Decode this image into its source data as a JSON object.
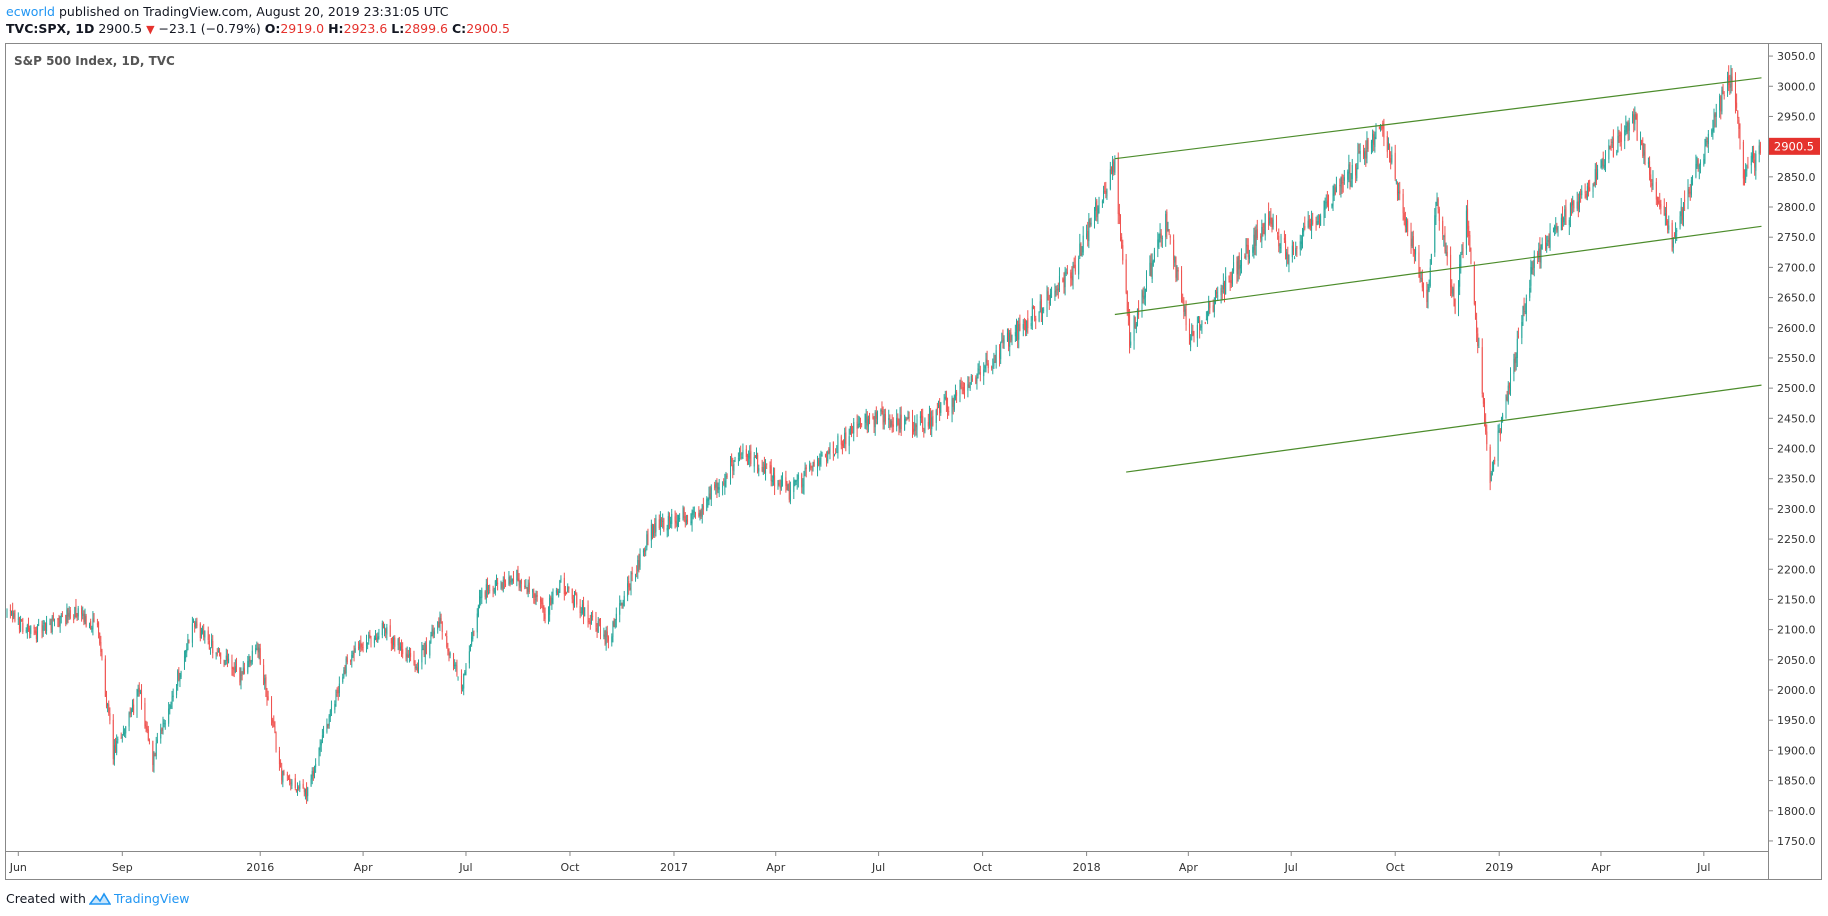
{
  "header": {
    "author": "ecworld",
    "published_text": "published on TradingView.com, August 20, 2019 23:31:05 UTC",
    "symbol": "TVC:SPX, 1D",
    "last": "2900.5",
    "change": "−23.1 (−0.79%)",
    "o_label": "O:",
    "o_val": "2919.0",
    "h_label": "H:",
    "h_val": "2923.6",
    "l_label": "L:",
    "l_val": "2899.6",
    "c_label": "C:",
    "c_val": "2900.5"
  },
  "footer": {
    "created_with": "Created with",
    "brand": "TradingView"
  },
  "colors": {
    "up": "#26a69a",
    "down": "#ef5350",
    "channel": "#4c8c2b",
    "price_tag": "#e5322d"
  },
  "chart_data": {
    "type": "candlestick",
    "title": "S&P 500 Index, 1D, TVC",
    "price_tag": "2900.5",
    "ylim": [
      1735,
      3070
    ],
    "y_ticks": [
      "3050.0",
      "3000.0",
      "2950.0",
      "2900.0",
      "2850.0",
      "2800.0",
      "2750.0",
      "2700.0",
      "2650.0",
      "2600.0",
      "2550.0",
      "2500.0",
      "2450.0",
      "2400.0",
      "2350.0",
      "2300.0",
      "2250.0",
      "2200.0",
      "2150.0",
      "2100.0",
      "2050.0",
      "2000.0",
      "1950.0",
      "1900.0",
      "1850.0",
      "1800.0",
      "1750.0"
    ],
    "x_ticks": [
      {
        "label": "Jun",
        "date": "2015-06-01"
      },
      {
        "label": "Sep",
        "date": "2015-09-01"
      },
      {
        "label": "2016",
        "date": "2016-01-01"
      },
      {
        "label": "Apr",
        "date": "2016-04-01"
      },
      {
        "label": "Jul",
        "date": "2016-07-01"
      },
      {
        "label": "Oct",
        "date": "2016-10-01"
      },
      {
        "label": "2017",
        "date": "2017-01-01"
      },
      {
        "label": "Apr",
        "date": "2017-04-01"
      },
      {
        "label": "Jul",
        "date": "2017-07-01"
      },
      {
        "label": "Oct",
        "date": "2017-10-01"
      },
      {
        "label": "2018",
        "date": "2018-01-01"
      },
      {
        "label": "Apr",
        "date": "2018-04-01"
      },
      {
        "label": "Jul",
        "date": "2018-07-01"
      },
      {
        "label": "Oct",
        "date": "2018-10-01"
      },
      {
        "label": "2019",
        "date": "2019-01-01"
      },
      {
        "label": "Apr",
        "date": "2019-04-01"
      },
      {
        "label": "Jul",
        "date": "2019-07-01"
      }
    ],
    "xlim": [
      "2015-05-22",
      "2019-08-25"
    ],
    "close_path": [
      [
        "2015-05-22",
        2126
      ],
      [
        "2015-06-15",
        2094
      ],
      [
        "2015-07-20",
        2128
      ],
      [
        "2015-08-10",
        2104
      ],
      [
        "2015-08-24",
        1893
      ],
      [
        "2015-09-16",
        1995
      ],
      [
        "2015-09-28",
        1882
      ],
      [
        "2015-11-03",
        2109
      ],
      [
        "2015-12-14",
        2021
      ],
      [
        "2015-12-29",
        2078
      ],
      [
        "2016-01-20",
        1860
      ],
      [
        "2016-02-11",
        1829
      ],
      [
        "2016-03-18",
        2050
      ],
      [
        "2016-04-20",
        2102
      ],
      [
        "2016-05-19",
        2041
      ],
      [
        "2016-06-08",
        2119
      ],
      [
        "2016-06-27",
        2000
      ],
      [
        "2016-07-15",
        2161
      ],
      [
        "2016-08-15",
        2190
      ],
      [
        "2016-09-09",
        2128
      ],
      [
        "2016-09-22",
        2177
      ],
      [
        "2016-11-04",
        2085
      ],
      [
        "2016-12-13",
        2271
      ],
      [
        "2017-01-25",
        2298
      ],
      [
        "2017-03-01",
        2396
      ],
      [
        "2017-04-13",
        2328
      ],
      [
        "2017-06-19",
        2453
      ],
      [
        "2017-08-10",
        2438
      ],
      [
        "2017-09-15",
        2500
      ],
      [
        "2017-12-18",
        2690
      ],
      [
        "2018-01-26",
        2872
      ],
      [
        "2018-02-08",
        2581
      ],
      [
        "2018-03-12",
        2783
      ],
      [
        "2018-04-02",
        2582
      ],
      [
        "2018-06-12",
        2786
      ],
      [
        "2018-06-28",
        2716
      ],
      [
        "2018-09-20",
        2930
      ],
      [
        "2018-10-29",
        2641
      ],
      [
        "2018-11-07",
        2813
      ],
      [
        "2018-11-23",
        2633
      ],
      [
        "2018-12-03",
        2790
      ],
      [
        "2018-12-24",
        2351
      ],
      [
        "2019-01-31",
        2704
      ],
      [
        "2019-04-30",
        2945
      ],
      [
        "2019-06-03",
        2744
      ],
      [
        "2019-07-26",
        3025
      ],
      [
        "2019-08-05",
        2844
      ],
      [
        "2019-08-20",
        2900
      ]
    ],
    "channel_lines": [
      {
        "start": [
          "2018-01-26",
          2880
        ],
        "end": [
          "2019-08-21",
          3014
        ]
      },
      {
        "start": [
          "2018-01-26",
          2622
        ],
        "end": [
          "2019-08-21",
          2768
        ]
      },
      {
        "start": [
          "2018-02-05",
          2361
        ],
        "end": [
          "2019-08-21",
          2505
        ]
      }
    ]
  }
}
